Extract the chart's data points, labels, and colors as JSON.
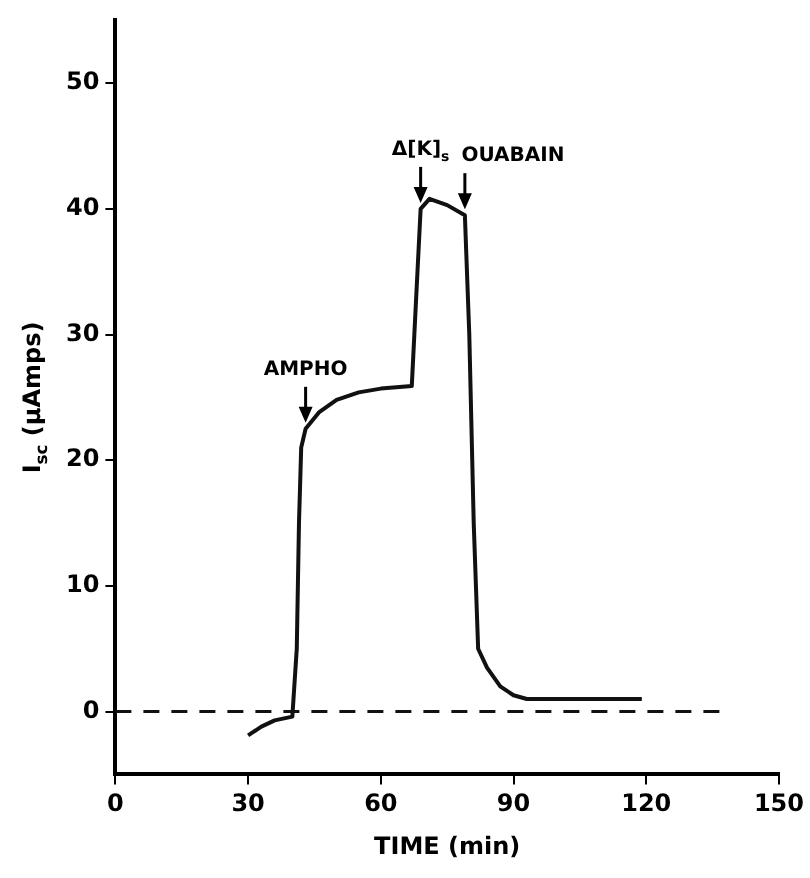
{
  "chart_data": {
    "type": "line",
    "xlabel": "TIME (min)",
    "ylabel": "I$_{sc}$ (μAmps)",
    "x": [
      30,
      33,
      36,
      40,
      41,
      41.5,
      42,
      43,
      46,
      50,
      55,
      60,
      67,
      68,
      69,
      71,
      75,
      79,
      80,
      81,
      82,
      84,
      87,
      90,
      93,
      119
    ],
    "values": [
      -1.9,
      -1.2,
      -0.7,
      -0.4,
      5,
      15,
      21,
      22.5,
      23.8,
      24.8,
      25.4,
      25.7,
      25.9,
      33,
      40,
      40.8,
      40.3,
      39.5,
      30,
      15,
      5,
      3.5,
      2,
      1.3,
      1,
      1
    ],
    "color": "#111111",
    "marker": "none",
    "line_style": "solid",
    "xlim": [
      0,
      150
    ],
    "xticks": [
      0,
      30,
      60,
      90,
      120,
      150
    ],
    "ylim": [
      -5,
      55
    ],
    "yticks": [
      0,
      10,
      20,
      30,
      40,
      50
    ],
    "grid": false,
    "legend": false,
    "ref_lines": [
      {
        "axis": "y",
        "value": 0,
        "line_style": "dashed",
        "color": "#111111"
      }
    ],
    "annotations": [
      {
        "text": "AMPHO",
        "x": 43,
        "y": 22.5
      },
      {
        "text": "Δ[K]$_{s}$",
        "x": 69,
        "y": 40
      },
      {
        "text": "OUABAIN",
        "x": 79,
        "y": 39.5
      }
    ]
  }
}
